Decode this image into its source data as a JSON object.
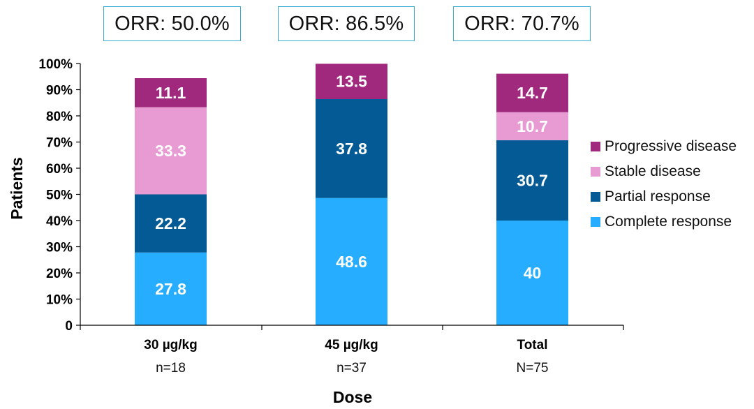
{
  "orr_boxes": [
    {
      "label": "ORR: 50.0%"
    },
    {
      "label": "ORR: 86.5%"
    },
    {
      "label": "ORR: 70.7%"
    }
  ],
  "legend": [
    {
      "label": "Progressive disease",
      "color": "#a0297d"
    },
    {
      "label": "Stable disease",
      "color": "#e89ad2"
    },
    {
      "label": "Partial response",
      "color": "#035a95"
    },
    {
      "label": "Complete response",
      "color": "#27adff"
    }
  ],
  "chart_data": {
    "type": "bar",
    "stacked": true,
    "title": "",
    "xlabel": "Dose",
    "ylabel": "Patients",
    "ylim": [
      0,
      100
    ],
    "yticks": [
      "0",
      "10%",
      "20%",
      "30%",
      "40%",
      "50%",
      "60%",
      "70%",
      "80%",
      "90%",
      "100%"
    ],
    "categories": [
      {
        "label": "30 µg/kg",
        "sublabel": "n=18"
      },
      {
        "label": "45 µg/kg",
        "sublabel": "n=37"
      },
      {
        "label": "Total",
        "sublabel": "N=75"
      }
    ],
    "series": [
      {
        "name": "Complete response",
        "color": "#27adff",
        "values": [
          27.8,
          48.6,
          40
        ],
        "labels": [
          "27.8",
          "48.6",
          "40"
        ]
      },
      {
        "name": "Partial response",
        "color": "#035a95",
        "values": [
          22.2,
          37.8,
          30.7
        ],
        "labels": [
          "22.2",
          "37.8",
          "30.7"
        ]
      },
      {
        "name": "Stable disease",
        "color": "#e89ad2",
        "values": [
          33.3,
          0,
          10.7
        ],
        "labels": [
          "33.3",
          "",
          "10.7"
        ]
      },
      {
        "name": "Progressive disease",
        "color": "#a0297d",
        "values": [
          11.1,
          13.5,
          14.7
        ],
        "labels": [
          "11.1",
          "13.5",
          "14.7"
        ]
      }
    ],
    "grid": false,
    "legend_position": "right"
  }
}
